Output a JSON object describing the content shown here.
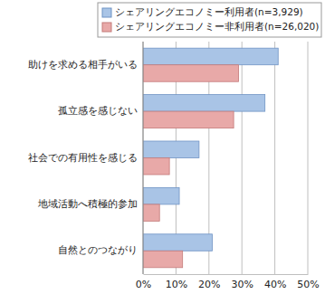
{
  "chart_data": {
    "type": "bar",
    "orientation": "horizontal",
    "categories": [
      "助けを求める相手がいる",
      "孤立感を感じない",
      "社会での有用性を感じる",
      "地域活動へ積極的参加",
      "自然とのつながり"
    ],
    "series": [
      {
        "name": "シェアリングエコノミー利用者(n=3,929)",
        "color": "#a9c4e6",
        "values": [
          41,
          37,
          17,
          11,
          21
        ]
      },
      {
        "name": "シェアリングエコノミー非利用者(n=26,020)",
        "color": "#e8a9a8",
        "values": [
          29,
          27.5,
          8,
          5,
          12
        ]
      }
    ],
    "xlim": [
      0,
      50
    ],
    "xticks": [
      {
        "value": 0,
        "label": "0%"
      },
      {
        "value": 10,
        "label": "10%"
      },
      {
        "value": 20,
        "label": "20%"
      },
      {
        "value": 30,
        "label": "30%"
      },
      {
        "value": 40,
        "label": "40%"
      },
      {
        "value": 50,
        "label": "50%"
      }
    ],
    "grid": true,
    "legend": "top"
  }
}
